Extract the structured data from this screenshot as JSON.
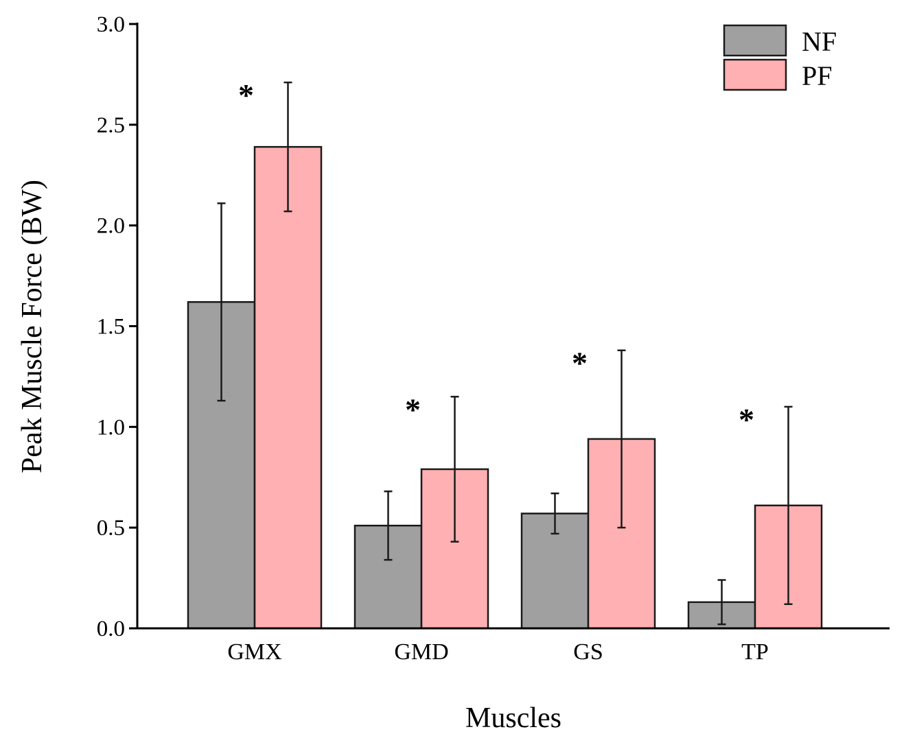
{
  "chart_data": {
    "type": "bar",
    "title": "",
    "xlabel": "Muscles",
    "ylabel": "Peak Muscle Force (BW)",
    "ylim": [
      0,
      3.0
    ],
    "yticks": [
      0.0,
      0.5,
      1.0,
      1.5,
      2.0,
      2.5,
      3.0
    ],
    "ytick_labels": [
      "0.0",
      "0.5",
      "1.0",
      "1.5",
      "2.0",
      "2.5",
      "3.0"
    ],
    "categories": [
      "GMX",
      "GMD",
      "GS",
      "TP"
    ],
    "series": [
      {
        "name": "NF",
        "color": "#a0a0a0",
        "values": [
          1.62,
          0.51,
          0.57,
          0.13
        ],
        "err_low": [
          1.13,
          0.34,
          0.47,
          0.02
        ],
        "err_high": [
          2.11,
          0.68,
          0.67,
          0.24
        ]
      },
      {
        "name": "PF",
        "color": "#ffb0b2",
        "values": [
          2.39,
          0.79,
          0.94,
          0.61
        ],
        "err_low": [
          2.07,
          0.43,
          0.5,
          0.12
        ],
        "err_high": [
          2.71,
          1.15,
          1.38,
          1.1
        ]
      }
    ],
    "significance_marker": "*",
    "significant_categories": [
      "GMX",
      "GMD",
      "GS",
      "TP"
    ],
    "legend": {
      "position": "top-right",
      "entries": [
        "NF",
        "PF"
      ]
    },
    "grid": false
  }
}
